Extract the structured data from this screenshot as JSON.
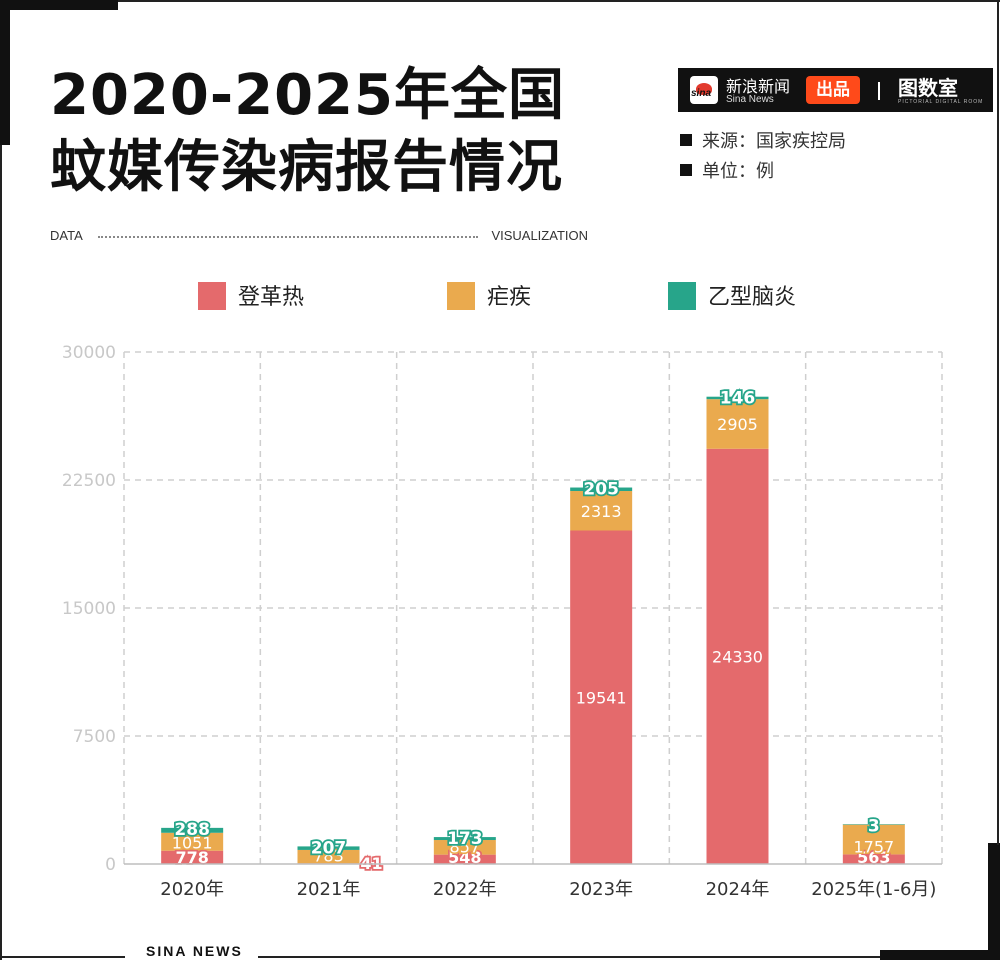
{
  "title_line1": "2020-2025年全国",
  "title_line2": "蚊媒传染病报告情况",
  "data_label": "DATA",
  "visualization_label": "VISUALIZATION",
  "brand": {
    "sina_logo_text": "sina",
    "name": "新浪新闻",
    "sub": "Sina News",
    "produced": "出品",
    "tushishi": "图数室",
    "tushishi_sub": "PICTORIAL DIGITAL ROOM"
  },
  "source": "来源：国家疾控局",
  "unit": "单位：例",
  "footer": "SINA NEWS",
  "colors": {
    "dengue": "#e46a6c",
    "malaria": "#eaaa4e",
    "je": "#27a58a"
  },
  "chart_data": {
    "type": "bar",
    "stacked": true,
    "categories": [
      "2020年",
      "2021年",
      "2022年",
      "2023年",
      "2024年",
      "2025年(1-6月)"
    ],
    "series": [
      {
        "name": "登革热",
        "values": [
          778,
          41,
          548,
          19541,
          24330,
          563
        ]
      },
      {
        "name": "疟疾",
        "values": [
          1051,
          783,
          857,
          2313,
          2905,
          1757
        ]
      },
      {
        "name": "乙型脑炎",
        "values": [
          288,
          207,
          173,
          205,
          146,
          3
        ]
      }
    ],
    "ylim": [
      0,
      30000
    ],
    "yticks": [
      0,
      7500,
      15000,
      22500,
      30000
    ],
    "grid": true,
    "legend_position": "top"
  }
}
